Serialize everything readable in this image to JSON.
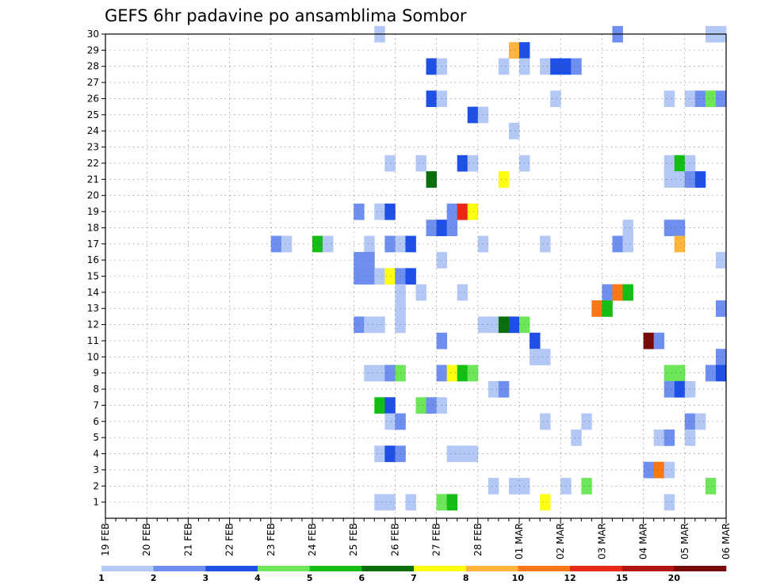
{
  "chart_data": {
    "type": "heatmap",
    "title": "GEFS 6hr padavine po ansamblima Sombor",
    "xlabel": "",
    "ylabel": "",
    "x_tick_labels": [
      "19 FEB",
      "20 FEB",
      "21 FEB",
      "22 FEB",
      "23 FEB",
      "24 FEB",
      "25 FEB",
      "26 FEB",
      "27 FEB",
      "28 FEB",
      "01 MAR",
      "02 MAR",
      "03 MAR",
      "04 MAR",
      "05 MAR",
      "06 MAR"
    ],
    "y_tick_labels": [
      "1",
      "2",
      "3",
      "4",
      "5",
      "6",
      "7",
      "8",
      "9",
      "10",
      "11",
      "12",
      "13",
      "14",
      "15",
      "16",
      "17",
      "18",
      "19",
      "20",
      "21",
      "22",
      "23",
      "24",
      "25",
      "26",
      "27",
      "28",
      "29",
      "30"
    ],
    "x_unit": "6-hour steps from 19 FEB 00Z",
    "xlim": [
      0,
      60
    ],
    "ylim": [
      0,
      30
    ],
    "grid": true,
    "legend_position": "bottom",
    "colorbar": {
      "ticks": [
        "1",
        "2",
        "3",
        "4",
        "5",
        "6",
        "7",
        "8",
        "10",
        "12",
        "15",
        "20"
      ],
      "colors": [
        "#b4c8f5",
        "#6e8ff0",
        "#1e50e6",
        "#6ee65a",
        "#14be14",
        "#0a6e0a",
        "#ffff14",
        "#ffb43c",
        "#fa7814",
        "#e62814",
        "#b41414",
        "#780a0a"
      ]
    },
    "cells": [
      {
        "step": 26,
        "member": 30,
        "level": 1
      },
      {
        "step": 49,
        "member": 30,
        "level": 2
      },
      {
        "step": 58,
        "member": 30,
        "level": 1
      },
      {
        "step": 59,
        "member": 30,
        "level": 1
      },
      {
        "step": 39,
        "member": 29,
        "level": 8
      },
      {
        "step": 40,
        "member": 29,
        "level": 3
      },
      {
        "step": 31,
        "member": 28,
        "level": 3
      },
      {
        "step": 32,
        "member": 28,
        "level": 1
      },
      {
        "step": 38,
        "member": 28,
        "level": 1
      },
      {
        "step": 40,
        "member": 28,
        "level": 1
      },
      {
        "step": 42,
        "member": 28,
        "level": 1
      },
      {
        "step": 43,
        "member": 28,
        "level": 3
      },
      {
        "step": 44,
        "member": 28,
        "level": 3
      },
      {
        "step": 45,
        "member": 28,
        "level": 2
      },
      {
        "step": 31,
        "member": 26,
        "level": 3
      },
      {
        "step": 32,
        "member": 26,
        "level": 1
      },
      {
        "step": 43,
        "member": 26,
        "level": 1
      },
      {
        "step": 54,
        "member": 26,
        "level": 1
      },
      {
        "step": 56,
        "member": 26,
        "level": 1
      },
      {
        "step": 57,
        "member": 26,
        "level": 2
      },
      {
        "step": 58,
        "member": 26,
        "level": 4
      },
      {
        "step": 59,
        "member": 26,
        "level": 2
      },
      {
        "step": 35,
        "member": 25,
        "level": 3
      },
      {
        "step": 36,
        "member": 25,
        "level": 1
      },
      {
        "step": 39,
        "member": 24,
        "level": 1
      },
      {
        "step": 27,
        "member": 22,
        "level": 1
      },
      {
        "step": 30,
        "member": 22,
        "level": 1
      },
      {
        "step": 34,
        "member": 22,
        "level": 3
      },
      {
        "step": 35,
        "member": 22,
        "level": 1
      },
      {
        "step": 40,
        "member": 22,
        "level": 1
      },
      {
        "step": 54,
        "member": 22,
        "level": 1
      },
      {
        "step": 55,
        "member": 22,
        "level": 5
      },
      {
        "step": 56,
        "member": 22,
        "level": 1
      },
      {
        "step": 31,
        "member": 21,
        "level": 6
      },
      {
        "step": 38,
        "member": 21,
        "level": 7
      },
      {
        "step": 54,
        "member": 21,
        "level": 1
      },
      {
        "step": 55,
        "member": 21,
        "level": 1
      },
      {
        "step": 56,
        "member": 21,
        "level": 2
      },
      {
        "step": 57,
        "member": 21,
        "level": 3
      },
      {
        "step": 24,
        "member": 19,
        "level": 2
      },
      {
        "step": 26,
        "member": 19,
        "level": 1
      },
      {
        "step": 27,
        "member": 19,
        "level": 3
      },
      {
        "step": 33,
        "member": 19,
        "level": 2
      },
      {
        "step": 34,
        "member": 19,
        "level": 10
      },
      {
        "step": 35,
        "member": 19,
        "level": 7
      },
      {
        "step": 31,
        "member": 18,
        "level": 2
      },
      {
        "step": 32,
        "member": 18,
        "level": 3
      },
      {
        "step": 33,
        "member": 18,
        "level": 2
      },
      {
        "step": 50,
        "member": 18,
        "level": 1
      },
      {
        "step": 54,
        "member": 18,
        "level": 2
      },
      {
        "step": 55,
        "member": 18,
        "level": 2
      },
      {
        "step": 16,
        "member": 17,
        "level": 2
      },
      {
        "step": 17,
        "member": 17,
        "level": 1
      },
      {
        "step": 20,
        "member": 17,
        "level": 5
      },
      {
        "step": 21,
        "member": 17,
        "level": 1
      },
      {
        "step": 25,
        "member": 17,
        "level": 1
      },
      {
        "step": 27,
        "member": 17,
        "level": 2
      },
      {
        "step": 28,
        "member": 17,
        "level": 1
      },
      {
        "step": 29,
        "member": 17,
        "level": 3
      },
      {
        "step": 36,
        "member": 17,
        "level": 1
      },
      {
        "step": 42,
        "member": 17,
        "level": 1
      },
      {
        "step": 49,
        "member": 17,
        "level": 2
      },
      {
        "step": 50,
        "member": 17,
        "level": 1
      },
      {
        "step": 55,
        "member": 17,
        "level": 8
      },
      {
        "step": 24,
        "member": 16,
        "level": 2
      },
      {
        "step": 25,
        "member": 16,
        "level": 2
      },
      {
        "step": 32,
        "member": 16,
        "level": 1
      },
      {
        "step": 59,
        "member": 16,
        "level": 1
      },
      {
        "step": 24,
        "member": 15,
        "level": 2
      },
      {
        "step": 25,
        "member": 15,
        "level": 2
      },
      {
        "step": 26,
        "member": 15,
        "level": 1
      },
      {
        "step": 27,
        "member": 15,
        "level": 7
      },
      {
        "step": 28,
        "member": 15,
        "level": 2
      },
      {
        "step": 29,
        "member": 15,
        "level": 3
      },
      {
        "step": 28,
        "member": 14,
        "level": 1
      },
      {
        "step": 30,
        "member": 14,
        "level": 1
      },
      {
        "step": 34,
        "member": 14,
        "level": 1
      },
      {
        "step": 48,
        "member": 14,
        "level": 2
      },
      {
        "step": 49,
        "member": 14,
        "level": 9
      },
      {
        "step": 50,
        "member": 14,
        "level": 5
      },
      {
        "step": 28,
        "member": 13,
        "level": 1
      },
      {
        "step": 47,
        "member": 13,
        "level": 9
      },
      {
        "step": 48,
        "member": 13,
        "level": 5
      },
      {
        "step": 59,
        "member": 13,
        "level": 2
      },
      {
        "step": 24,
        "member": 12,
        "level": 2
      },
      {
        "step": 25,
        "member": 12,
        "level": 1
      },
      {
        "step": 26,
        "member": 12,
        "level": 1
      },
      {
        "step": 28,
        "member": 12,
        "level": 1
      },
      {
        "step": 36,
        "member": 12,
        "level": 1
      },
      {
        "step": 37,
        "member": 12,
        "level": 1
      },
      {
        "step": 38,
        "member": 12,
        "level": 6
      },
      {
        "step": 39,
        "member": 12,
        "level": 3
      },
      {
        "step": 40,
        "member": 12,
        "level": 4
      },
      {
        "step": 32,
        "member": 11,
        "level": 2
      },
      {
        "step": 41,
        "member": 11,
        "level": 3
      },
      {
        "step": 52,
        "member": 11,
        "level": 12
      },
      {
        "step": 53,
        "member": 11,
        "level": 2
      },
      {
        "step": 41,
        "member": 10,
        "level": 1
      },
      {
        "step": 42,
        "member": 10,
        "level": 1
      },
      {
        "step": 59,
        "member": 10,
        "level": 2
      },
      {
        "step": 25,
        "member": 9,
        "level": 1
      },
      {
        "step": 26,
        "member": 9,
        "level": 1
      },
      {
        "step": 27,
        "member": 9,
        "level": 2
      },
      {
        "step": 28,
        "member": 9,
        "level": 4
      },
      {
        "step": 32,
        "member": 9,
        "level": 2
      },
      {
        "step": 33,
        "member": 9,
        "level": 7
      },
      {
        "step": 34,
        "member": 9,
        "level": 5
      },
      {
        "step": 35,
        "member": 9,
        "level": 4
      },
      {
        "step": 54,
        "member": 9,
        "level": 4
      },
      {
        "step": 55,
        "member": 9,
        "level": 4
      },
      {
        "step": 58,
        "member": 9,
        "level": 2
      },
      {
        "step": 59,
        "member": 9,
        "level": 3
      },
      {
        "step": 37,
        "member": 8,
        "level": 1
      },
      {
        "step": 38,
        "member": 8,
        "level": 2
      },
      {
        "step": 54,
        "member": 8,
        "level": 2
      },
      {
        "step": 55,
        "member": 8,
        "level": 3
      },
      {
        "step": 56,
        "member": 8,
        "level": 1
      },
      {
        "step": 26,
        "member": 7,
        "level": 5
      },
      {
        "step": 27,
        "member": 7,
        "level": 3
      },
      {
        "step": 30,
        "member": 7,
        "level": 4
      },
      {
        "step": 31,
        "member": 7,
        "level": 2
      },
      {
        "step": 32,
        "member": 7,
        "level": 1
      },
      {
        "step": 27,
        "member": 6,
        "level": 1
      },
      {
        "step": 28,
        "member": 6,
        "level": 2
      },
      {
        "step": 42,
        "member": 6,
        "level": 1
      },
      {
        "step": 46,
        "member": 6,
        "level": 1
      },
      {
        "step": 56,
        "member": 6,
        "level": 2
      },
      {
        "step": 57,
        "member": 6,
        "level": 1
      },
      {
        "step": 45,
        "member": 5,
        "level": 1
      },
      {
        "step": 53,
        "member": 5,
        "level": 1
      },
      {
        "step": 54,
        "member": 5,
        "level": 2
      },
      {
        "step": 56,
        "member": 5,
        "level": 1
      },
      {
        "step": 26,
        "member": 4,
        "level": 1
      },
      {
        "step": 27,
        "member": 4,
        "level": 3
      },
      {
        "step": 28,
        "member": 4,
        "level": 2
      },
      {
        "step": 33,
        "member": 4,
        "level": 1
      },
      {
        "step": 34,
        "member": 4,
        "level": 1
      },
      {
        "step": 35,
        "member": 4,
        "level": 1
      },
      {
        "step": 52,
        "member": 3,
        "level": 2
      },
      {
        "step": 53,
        "member": 3,
        "level": 9
      },
      {
        "step": 54,
        "member": 3,
        "level": 1
      },
      {
        "step": 37,
        "member": 2,
        "level": 1
      },
      {
        "step": 39,
        "member": 2,
        "level": 1
      },
      {
        "step": 40,
        "member": 2,
        "level": 1
      },
      {
        "step": 44,
        "member": 2,
        "level": 1
      },
      {
        "step": 46,
        "member": 2,
        "level": 4
      },
      {
        "step": 58,
        "member": 2,
        "level": 4
      },
      {
        "step": 26,
        "member": 1,
        "level": 1
      },
      {
        "step": 27,
        "member": 1,
        "level": 1
      },
      {
        "step": 29,
        "member": 1,
        "level": 1
      },
      {
        "step": 32,
        "member": 1,
        "level": 4
      },
      {
        "step": 33,
        "member": 1,
        "level": 5
      },
      {
        "step": 42,
        "member": 1,
        "level": 7
      },
      {
        "step": 54,
        "member": 1,
        "level": 1
      }
    ]
  }
}
